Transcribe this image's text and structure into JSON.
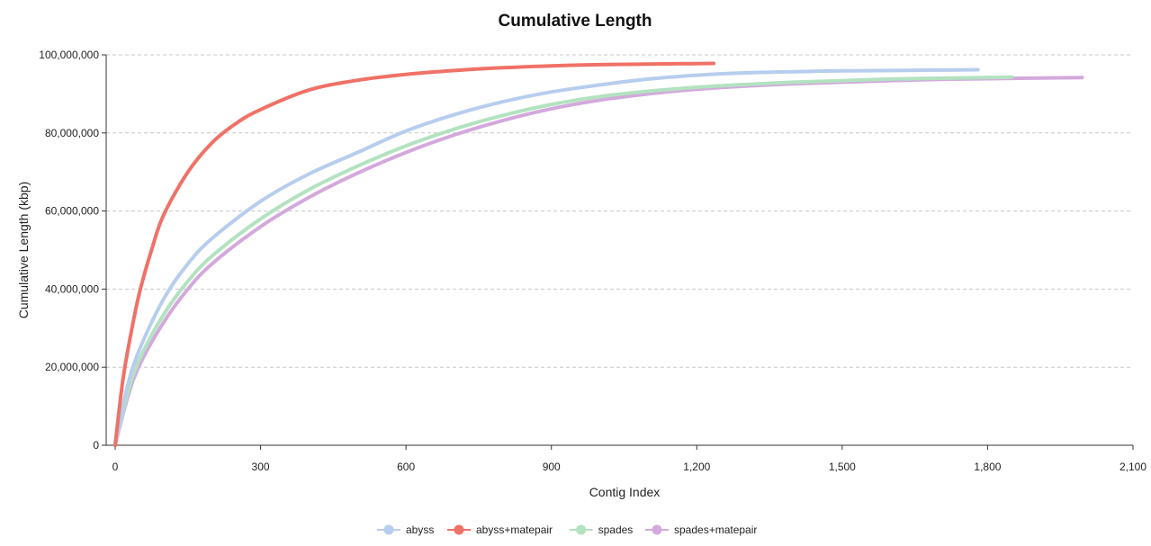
{
  "chart_data": {
    "type": "line",
    "title": "Cumulative Length",
    "xlabel": "Contig Index",
    "ylabel": "Cumulative Length (kbp)",
    "xlim": [
      0,
      2100
    ],
    "ylim": [
      0,
      100000000
    ],
    "x_ticks": [
      0,
      300,
      600,
      900,
      1200,
      1500,
      1800,
      2100
    ],
    "x_tick_labels": [
      "0",
      "300",
      "600",
      "900",
      "1,200",
      "1,500",
      "1,800",
      "2,100"
    ],
    "y_ticks": [
      0,
      20000000,
      40000000,
      60000000,
      80000000,
      100000000
    ],
    "y_tick_labels": [
      "0",
      "20,000,000",
      "40,000,000",
      "60,000,000",
      "80,000,000",
      "100,000,000"
    ],
    "grid": "horizontal dashed",
    "legend_position": "bottom-center",
    "series": [
      {
        "name": "abyss",
        "color": "#b7cdee",
        "points": [
          [
            0,
            0
          ],
          [
            25,
            15000000
          ],
          [
            50,
            24500000
          ],
          [
            100,
            37500000
          ],
          [
            150,
            46500000
          ],
          [
            200,
            53000000
          ],
          [
            300,
            62500000
          ],
          [
            400,
            69500000
          ],
          [
            500,
            75000000
          ],
          [
            600,
            80500000
          ],
          [
            700,
            84700000
          ],
          [
            800,
            88000000
          ],
          [
            900,
            90500000
          ],
          [
            1000,
            92300000
          ],
          [
            1100,
            93800000
          ],
          [
            1200,
            94800000
          ],
          [
            1300,
            95400000
          ],
          [
            1400,
            95700000
          ],
          [
            1500,
            95900000
          ],
          [
            1600,
            96000000
          ],
          [
            1700,
            96100000
          ],
          [
            1780,
            96200000
          ]
        ]
      },
      {
        "name": "abyss+matepair",
        "color": "#f07167",
        "points": [
          [
            0,
            0
          ],
          [
            15,
            16000000
          ],
          [
            30,
            27000000
          ],
          [
            50,
            39000000
          ],
          [
            75,
            50000000
          ],
          [
            100,
            59000000
          ],
          [
            150,
            70000000
          ],
          [
            200,
            77500000
          ],
          [
            250,
            82500000
          ],
          [
            300,
            86000000
          ],
          [
            400,
            91000000
          ],
          [
            500,
            93500000
          ],
          [
            600,
            95000000
          ],
          [
            700,
            96000000
          ],
          [
            800,
            96700000
          ],
          [
            900,
            97200000
          ],
          [
            1000,
            97500000
          ],
          [
            1100,
            97650000
          ],
          [
            1235,
            97800000
          ]
        ]
      },
      {
        "name": "spades",
        "color": "#b3e2c0",
        "points": [
          [
            0,
            0
          ],
          [
            25,
            13000000
          ],
          [
            50,
            22000000
          ],
          [
            100,
            33500000
          ],
          [
            150,
            42000000
          ],
          [
            200,
            48500000
          ],
          [
            300,
            58000000
          ],
          [
            400,
            65500000
          ],
          [
            500,
            71500000
          ],
          [
            600,
            76700000
          ],
          [
            700,
            81000000
          ],
          [
            800,
            84500000
          ],
          [
            900,
            87300000
          ],
          [
            1000,
            89300000
          ],
          [
            1100,
            90700000
          ],
          [
            1200,
            91700000
          ],
          [
            1300,
            92400000
          ],
          [
            1400,
            93000000
          ],
          [
            1500,
            93400000
          ],
          [
            1600,
            93800000
          ],
          [
            1700,
            94000000
          ],
          [
            1850,
            94300000
          ]
        ]
      },
      {
        "name": "spades+matepair",
        "color": "#d3a9dc",
        "points": [
          [
            0,
            0
          ],
          [
            25,
            12000000
          ],
          [
            50,
            20500000
          ],
          [
            100,
            31500000
          ],
          [
            150,
            40000000
          ],
          [
            200,
            46500000
          ],
          [
            300,
            56000000
          ],
          [
            400,
            63500000
          ],
          [
            500,
            69700000
          ],
          [
            600,
            75000000
          ],
          [
            700,
            79500000
          ],
          [
            800,
            83200000
          ],
          [
            900,
            86200000
          ],
          [
            1000,
            88400000
          ],
          [
            1100,
            90000000
          ],
          [
            1200,
            91200000
          ],
          [
            1300,
            92000000
          ],
          [
            1400,
            92600000
          ],
          [
            1500,
            93000000
          ],
          [
            1600,
            93400000
          ],
          [
            1700,
            93700000
          ],
          [
            1800,
            93900000
          ],
          [
            1995,
            94200000
          ]
        ]
      }
    ]
  }
}
